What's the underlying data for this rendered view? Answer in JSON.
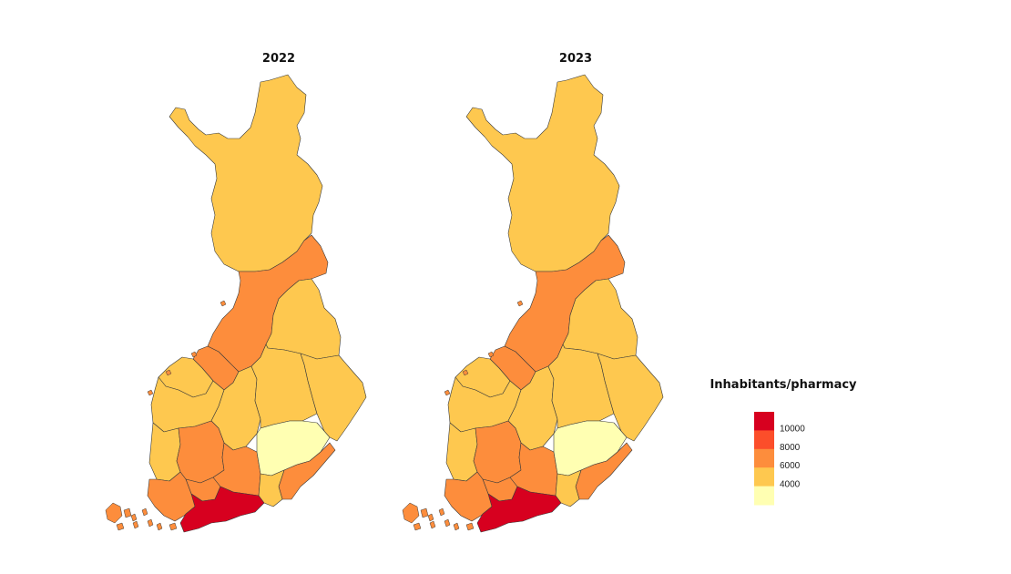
{
  "maps": [
    {
      "id": "map-2022",
      "title": "2022",
      "dx": 0
    },
    {
      "id": "map-2023",
      "title": "2023",
      "dx": 326
    }
  ],
  "colors": {
    "c1": "#ffffb2",
    "c2": "#fec84f",
    "c3": "#fd8d3c",
    "c4": "#fc4e2a",
    "c5": "#d7001f",
    "outline": "#3a3a3a"
  },
  "regions": [
    {
      "name": "lapland",
      "color": "c2"
    },
    {
      "name": "north-ostrobothnia",
      "color": "c3"
    },
    {
      "name": "kainuu",
      "color": "c2"
    },
    {
      "name": "central-ostrobothnia",
      "color": "c3"
    },
    {
      "name": "ostrobothnia",
      "color": "c2"
    },
    {
      "name": "south-ostrobothnia",
      "color": "c2"
    },
    {
      "name": "central-finland",
      "color": "c2"
    },
    {
      "name": "north-savo",
      "color": "c2"
    },
    {
      "name": "north-karelia",
      "color": "c2"
    },
    {
      "name": "satakunta",
      "color": "c2"
    },
    {
      "name": "pirkanmaa",
      "color": "c3"
    },
    {
      "name": "kanta-hame",
      "color": "c3"
    },
    {
      "name": "paijat-hame",
      "color": "c3"
    },
    {
      "name": "south-savo",
      "color": "c1"
    },
    {
      "name": "south-karelia",
      "color": "c3"
    },
    {
      "name": "kymenlaakso",
      "color": "c2"
    },
    {
      "name": "southwest-finland",
      "color": "c3"
    },
    {
      "name": "uusimaa",
      "color": "c5"
    },
    {
      "name": "aland",
      "color": "c3"
    }
  ],
  "legend": {
    "title": "Inhabitants/pharmacy",
    "swatches": [
      "c5",
      "c4",
      "c3",
      "c2",
      "c1"
    ],
    "labels": [
      "10000",
      "8000",
      "6000",
      "4000"
    ]
  }
}
